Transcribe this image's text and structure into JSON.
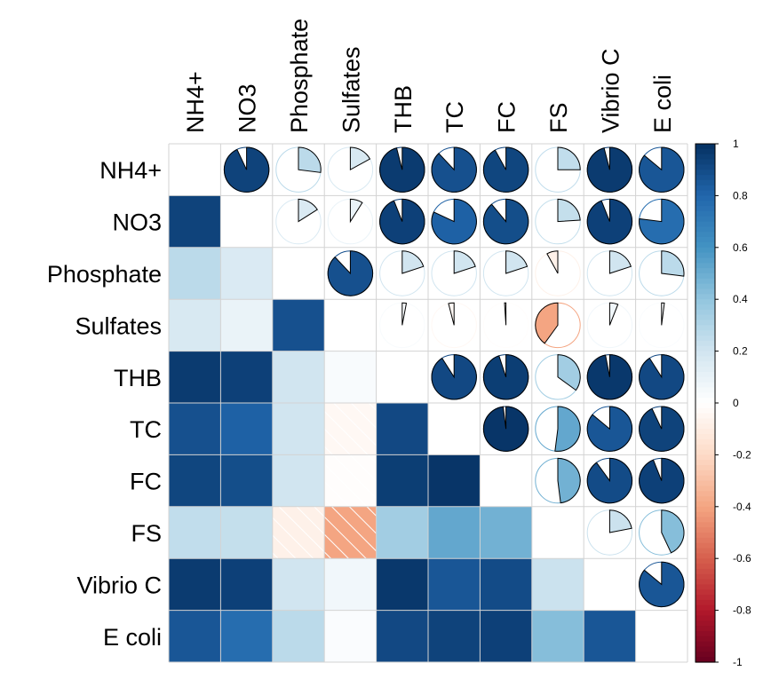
{
  "chart_data": {
    "type": "heatmap",
    "title": "",
    "variables": [
      "NH4+",
      "NO3",
      "Phosphate",
      "Sulfates",
      "THB",
      "TC",
      "FC",
      "FS",
      "Vibrio C",
      "E coli"
    ],
    "upper_method": "pie",
    "lower_method": "shade",
    "diagonal": "blank",
    "matrix": [
      [
        1.0,
        0.93,
        0.27,
        0.17,
        0.96,
        0.88,
        0.92,
        0.25,
        0.96,
        0.86
      ],
      [
        0.93,
        1.0,
        0.16,
        0.09,
        0.94,
        0.82,
        0.89,
        0.24,
        0.94,
        0.77
      ],
      [
        0.27,
        0.16,
        1.0,
        0.88,
        0.2,
        0.2,
        0.2,
        -0.08,
        0.2,
        0.27
      ],
      [
        0.17,
        0.09,
        0.88,
        1.0,
        0.03,
        -0.04,
        -0.01,
        -0.4,
        0.06,
        0.02
      ],
      [
        0.96,
        0.94,
        0.2,
        0.03,
        1.0,
        0.91,
        0.95,
        0.35,
        0.97,
        0.91
      ],
      [
        0.88,
        0.82,
        0.2,
        -0.04,
        0.91,
        1.0,
        0.98,
        0.52,
        0.86,
        0.93
      ],
      [
        0.92,
        0.89,
        0.2,
        -0.01,
        0.95,
        0.98,
        1.0,
        0.48,
        0.9,
        0.94
      ],
      [
        0.25,
        0.24,
        -0.08,
        -0.4,
        0.35,
        0.52,
        0.48,
        1.0,
        0.22,
        0.43
      ],
      [
        0.96,
        0.94,
        0.2,
        0.06,
        0.97,
        0.86,
        0.9,
        0.22,
        1.0,
        0.86
      ],
      [
        0.86,
        0.77,
        0.27,
        0.02,
        0.91,
        0.93,
        0.94,
        0.43,
        0.86,
        1.0
      ]
    ],
    "colorbar": {
      "range": [
        -1,
        1
      ],
      "ticks": [
        "1",
        "0.8",
        "0.6",
        "0.4",
        "0.2",
        "0",
        "-0.2",
        "-0.4",
        "-0.6",
        "-0.8",
        "-1"
      ],
      "colors": [
        "#67001F",
        "#B2182B",
        "#D6604D",
        "#F4A582",
        "#FDDBC7",
        "#FFFFFF",
        "#D1E5F0",
        "#92C5DE",
        "#4393C3",
        "#2166AC",
        "#053061"
      ],
      "placement": "right"
    },
    "grid": true
  }
}
